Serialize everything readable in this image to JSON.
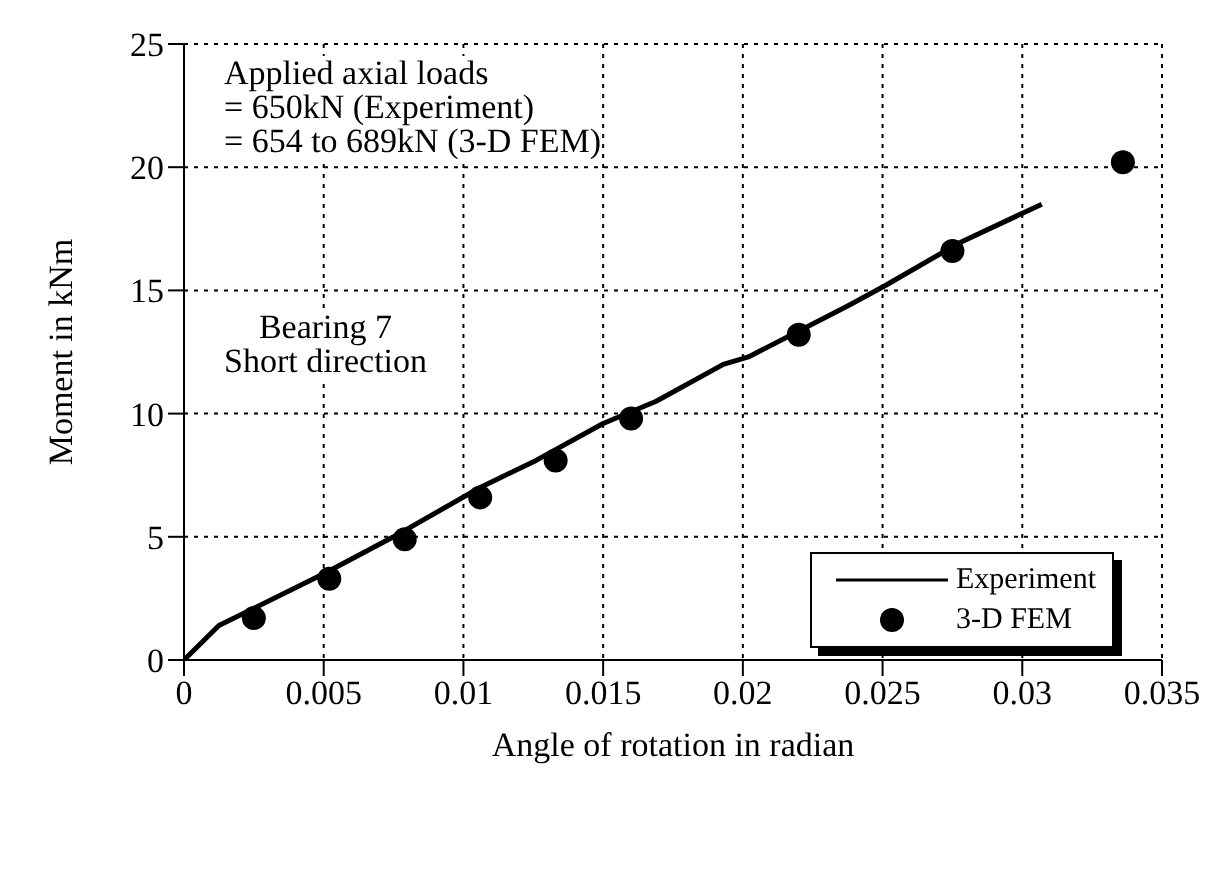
{
  "chart_data": {
    "type": "line",
    "xlabel": "Angle of rotation in radian",
    "ylabel": "Moment in kNm",
    "annotations": [
      "Applied axial loads\n= 650kN (Experiment)\n= 654 to 689kN (3-D FEM)",
      "Bearing 7\nShort direction"
    ],
    "series": [
      {
        "name": "Experiment",
        "color": "#000000",
        "marker": "none",
        "line_style": "solid",
        "x": [
          0,
          0.00125,
          0.005,
          0.0075,
          0.0106,
          0.0126,
          0.015,
          0.0169,
          0.0193,
          0.0202,
          0.0238,
          0.0251,
          0.0277,
          0.0307
        ],
        "values": [
          0,
          1.4,
          3.5,
          5.0,
          7.0,
          8.1,
          9.6,
          10.5,
          12.0,
          12.3,
          14.4,
          15.2,
          16.9,
          18.5
        ]
      },
      {
        "name": "3-D FEM",
        "type": "scatter",
        "color": "#000000",
        "marker": "circle",
        "x": [
          0.0025,
          0.0052,
          0.0079,
          0.0106,
          0.0133,
          0.016,
          0.022,
          0.0275,
          0.0336
        ],
        "values": [
          1.7,
          3.3,
          4.9,
          6.6,
          8.1,
          9.8,
          13.2,
          16.6,
          20.2
        ]
      }
    ],
    "xlim": [
      0,
      0.035
    ],
    "xticks": [
      0,
      0.005,
      0.01,
      0.015,
      0.02,
      0.025,
      0.03,
      0.035
    ],
    "ylim": [
      0,
      25
    ],
    "yticks": [
      0,
      5,
      10,
      15,
      20,
      25
    ],
    "grid": true,
    "legend": "bottom right"
  }
}
